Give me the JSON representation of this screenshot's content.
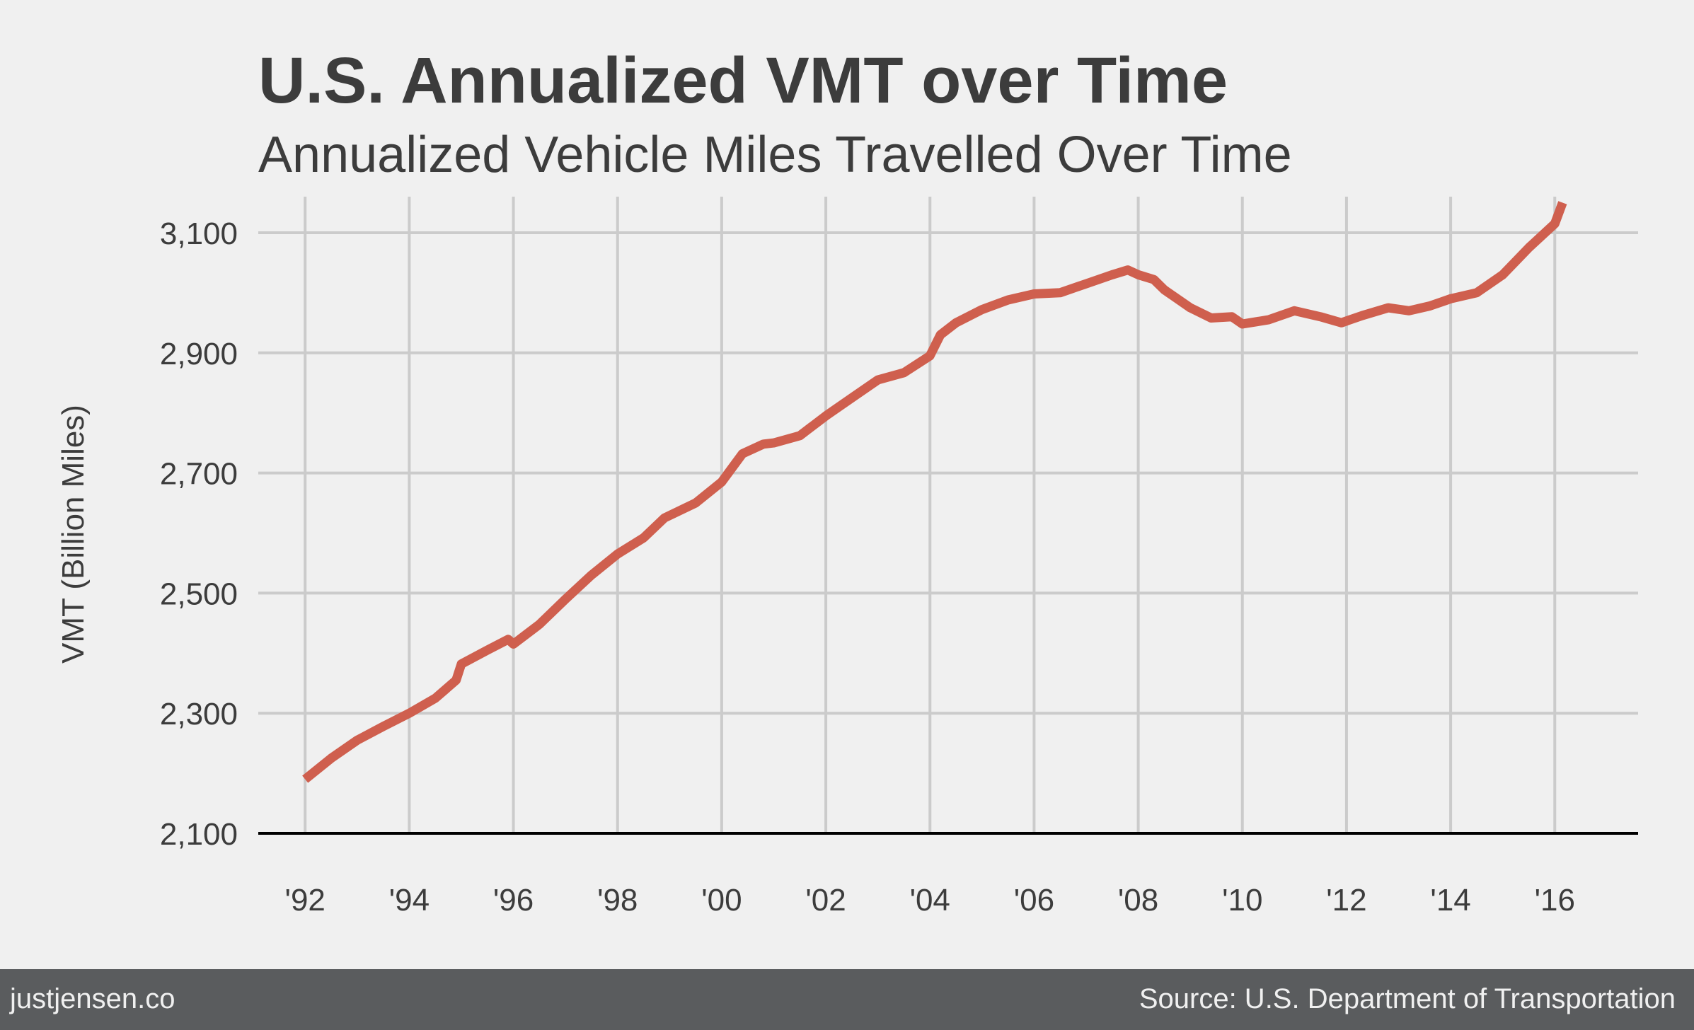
{
  "chart_data": {
    "type": "line",
    "title": "U.S. Annualized VMT over Time",
    "subtitle": "Annualized Vehicle Miles Travelled Over Time",
    "ylabel": "VMT (Billion Miles)",
    "xlabel": "",
    "xlim": [
      1991.1,
      2017.6
    ],
    "ylim": [
      2100,
      3160
    ],
    "yticks": [
      2100,
      2300,
      2500,
      2700,
      2900,
      3100
    ],
    "ytick_labels": [
      "2,100",
      "2,300",
      "2,500",
      "2,700",
      "2,900",
      "3,100"
    ],
    "xticks": [
      1992,
      1994,
      1996,
      1998,
      2000,
      2002,
      2004,
      2006,
      2008,
      2010,
      2012,
      2014,
      2016
    ],
    "xtick_labels": [
      "'92",
      "'94",
      "'96",
      "'98",
      "'00",
      "'02",
      "'04",
      "'06",
      "'08",
      "'10",
      "'12",
      "'14",
      "'16"
    ],
    "grid": true,
    "series": [
      {
        "color": "#cf5f4e",
        "x": [
          1992.0,
          1992.5,
          1993.0,
          1993.5,
          1994.0,
          1994.5,
          1994.9,
          1995.0,
          1995.5,
          1995.9,
          1996.0,
          1996.5,
          1997.0,
          1997.5,
          1998.0,
          1998.5,
          1998.9,
          1999.5,
          2000.0,
          2000.4,
          2000.8,
          2001.0,
          2001.5,
          2002.0,
          2002.5,
          2003.0,
          2003.5,
          2004.0,
          2004.2,
          2004.5,
          2005.0,
          2005.5,
          2006.0,
          2006.5,
          2007.0,
          2007.5,
          2007.8,
          2008.0,
          2008.3,
          2008.5,
          2009.0,
          2009.4,
          2009.8,
          2010.0,
          2010.5,
          2011.0,
          2011.5,
          2011.9,
          2012.3,
          2012.8,
          2013.2,
          2013.6,
          2014.0,
          2014.5,
          2015.0,
          2015.5,
          2016.0,
          2016.15
        ],
        "y": [
          2190,
          2225,
          2255,
          2278,
          2300,
          2325,
          2355,
          2382,
          2405,
          2423,
          2415,
          2448,
          2490,
          2530,
          2565,
          2592,
          2625,
          2650,
          2685,
          2732,
          2748,
          2750,
          2762,
          2795,
          2825,
          2855,
          2867,
          2895,
          2930,
          2950,
          2972,
          2988,
          2998,
          3000,
          3015,
          3030,
          3038,
          3030,
          3022,
          3005,
          2975,
          2958,
          2960,
          2948,
          2955,
          2970,
          2960,
          2950,
          2962,
          2975,
          2970,
          2978,
          2990,
          3000,
          3030,
          3075,
          3115,
          3150
        ]
      }
    ]
  },
  "footer": {
    "left": "justjensen.co",
    "right": "Source: U.S. Department of Transportation"
  }
}
